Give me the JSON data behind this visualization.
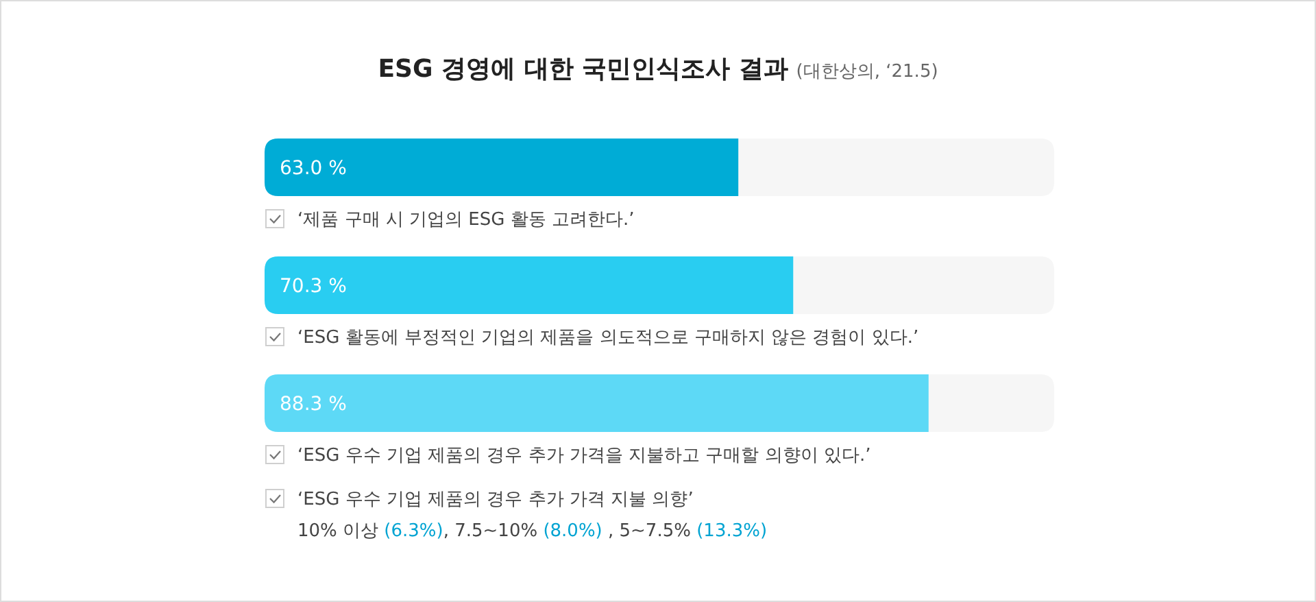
{
  "chart_data": {
    "type": "bar",
    "orientation": "horizontal",
    "title": "ESG 경영에 대한 국민인식조사 결과",
    "subtitle": "(대한상의, ‘21.5)",
    "categories": [
      "‘제품 구매 시 기업의 ESG 활동 고려한다.’",
      "‘ESG 활동에 부정적인 기업의 제품을 의도적으로 구매하지 않은 경험이 있다.’",
      "‘ESG 우수 기업 제품의 경우 추가 가격을 지불하고 구매할 의향이 있다.’"
    ],
    "values": [
      63.0,
      70.3,
      88.3
    ],
    "colors": [
      "#00acd6",
      "#29cdf1",
      "#5dd9f6"
    ],
    "value_labels": [
      "63.0 %",
      "70.3 %",
      "88.3 %"
    ],
    "xlim": [
      0,
      105
    ],
    "annotations": [
      "‘ESG 우수 기업 제품의 경우 추가 가격 지불 의향’",
      "10% 이상 (6.3%), 7.5~10% (8.0%) , 5~7.5% (13.3%)"
    ]
  }
}
